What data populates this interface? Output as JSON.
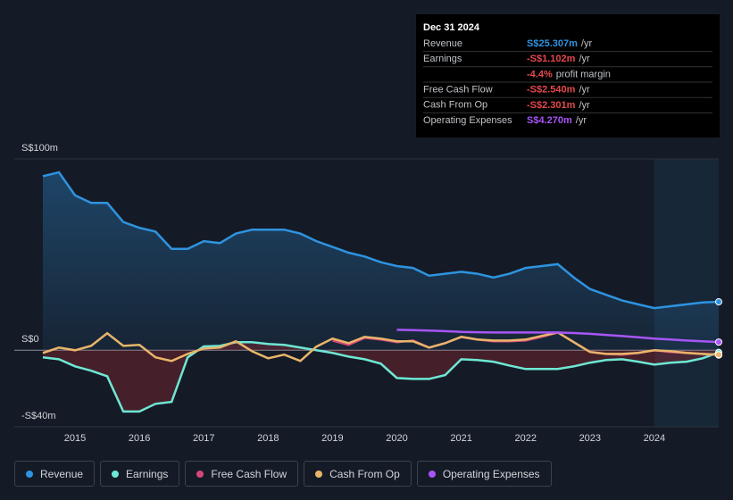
{
  "chart_data": {
    "type": "line",
    "x": [
      2014.5,
      2014.75,
      2015,
      2015.25,
      2015.5,
      2015.75,
      2016,
      2016.25,
      2016.5,
      2016.75,
      2017,
      2017.25,
      2017.5,
      2017.75,
      2018,
      2018.25,
      2018.5,
      2018.75,
      2019,
      2019.25,
      2019.5,
      2019.75,
      2020,
      2020.25,
      2020.5,
      2020.75,
      2021,
      2021.25,
      2021.5,
      2021.75,
      2022,
      2022.25,
      2022.5,
      2022.75,
      2023,
      2023.25,
      2023.5,
      2023.75,
      2024,
      2024.25,
      2024.5,
      2024.75,
      2025
    ],
    "xlim": [
      2014.5,
      2025
    ],
    "xticks": [
      2015,
      2016,
      2017,
      2018,
      2019,
      2020,
      2021,
      2022,
      2023,
      2024
    ],
    "ylim": [
      -40,
      100
    ],
    "yticks": [
      {
        "value": -40,
        "label": "-S$40m"
      },
      {
        "value": 0,
        "label": "S$0"
      },
      {
        "value": 100,
        "label": "S$100m"
      }
    ],
    "grid": true,
    "series": [
      {
        "name": "Revenue",
        "color": "#2e93e0",
        "fill": true,
        "values": [
          91,
          93,
          81,
          77,
          77,
          67,
          64,
          62,
          53,
          53,
          57,
          56,
          61,
          63,
          63,
          63,
          61,
          57,
          54,
          51,
          49,
          46,
          44,
          43,
          39,
          40,
          41,
          40,
          38,
          40,
          43,
          44,
          45,
          38,
          32,
          29,
          26,
          24,
          22,
          23,
          24,
          25,
          25.307
        ]
      },
      {
        "name": "Earnings",
        "color": "#6ee7d4",
        "fill": true,
        "values": [
          -3.7,
          -4.7,
          -8.4,
          -10.7,
          -13.6,
          -32,
          -32,
          -28,
          -27,
          -3.7,
          2,
          2.3,
          4.2,
          4.2,
          3.3,
          2.8,
          1.4,
          0,
          -1.4,
          -3.3,
          -4.7,
          -7,
          -14.5,
          -15,
          -15,
          -13,
          -4.7,
          -5.1,
          -6,
          -8,
          -9.8,
          -9.8,
          -9.8,
          -8.4,
          -6.5,
          -5.1,
          -4.7,
          -6,
          -7.5,
          -6.5,
          -6,
          -4.2,
          -1.102
        ]
      },
      {
        "name": "Free Cash Flow",
        "color": "#d6457a",
        "fill": false,
        "values": [
          null,
          null,
          null,
          null,
          null,
          null,
          null,
          null,
          null,
          null,
          null,
          null,
          null,
          null,
          null,
          null,
          null,
          null,
          5.1,
          2.8,
          6.5,
          5.6,
          4.2,
          5.1,
          1.4,
          3.7,
          7,
          5.6,
          4.7,
          4.7,
          5.1,
          7,
          9.3,
          4.2,
          -0.9,
          -1.9,
          -2.3,
          -1.4,
          0,
          -0.9,
          -1.4,
          -1.9,
          -2.54
        ]
      },
      {
        "name": "Cash From Op",
        "color": "#e9b56b",
        "fill": false,
        "values": [
          -1.4,
          1.4,
          0,
          2.3,
          8.9,
          2.3,
          2.8,
          -3.7,
          -5.6,
          -1.9,
          0.9,
          1.4,
          4.7,
          -0.5,
          -4.2,
          -2.3,
          -5.6,
          1.9,
          6.1,
          3.7,
          7,
          6.1,
          4.7,
          4.7,
          1.4,
          3.7,
          7,
          5.6,
          5.1,
          5.1,
          5.6,
          7.5,
          9.3,
          4.2,
          -0.9,
          -1.9,
          -1.9,
          -1.4,
          0,
          -0.5,
          -1.4,
          -1.9,
          -2.301
        ]
      },
      {
        "name": "Operating Expenses",
        "color": "#a855f7",
        "fill": false,
        "values": [
          null,
          null,
          null,
          null,
          null,
          null,
          null,
          null,
          null,
          null,
          null,
          null,
          null,
          null,
          null,
          null,
          null,
          null,
          null,
          null,
          null,
          null,
          10.7,
          10.5,
          10.3,
          10.0,
          9.6,
          9.4,
          9.3,
          9.3,
          9.3,
          9.3,
          9.3,
          9.0,
          8.6,
          8.0,
          7.4,
          6.8,
          6.1,
          5.6,
          5.1,
          4.7,
          4.27
        ]
      }
    ]
  },
  "tooltip": {
    "title": "Dec 31 2024",
    "rows": [
      {
        "label": "Revenue",
        "value": "S$25.307m",
        "unit": "/yr",
        "color": "#2e93e0"
      },
      {
        "label": "Earnings",
        "value": "-S$1.102m",
        "unit": "/yr",
        "color": "#e5484d"
      },
      {
        "value": "-4.4%",
        "unit": "profit margin",
        "color": "#e5484d"
      },
      {
        "label": "Free Cash Flow",
        "value": "-S$2.540m",
        "unit": "/yr",
        "color": "#e5484d"
      },
      {
        "label": "Cash From Op",
        "value": "-S$2.301m",
        "unit": "/yr",
        "color": "#e5484d"
      },
      {
        "label": "Operating Expenses",
        "value": "S$4.270m",
        "unit": "/yr",
        "color": "#a855f7"
      }
    ]
  }
}
